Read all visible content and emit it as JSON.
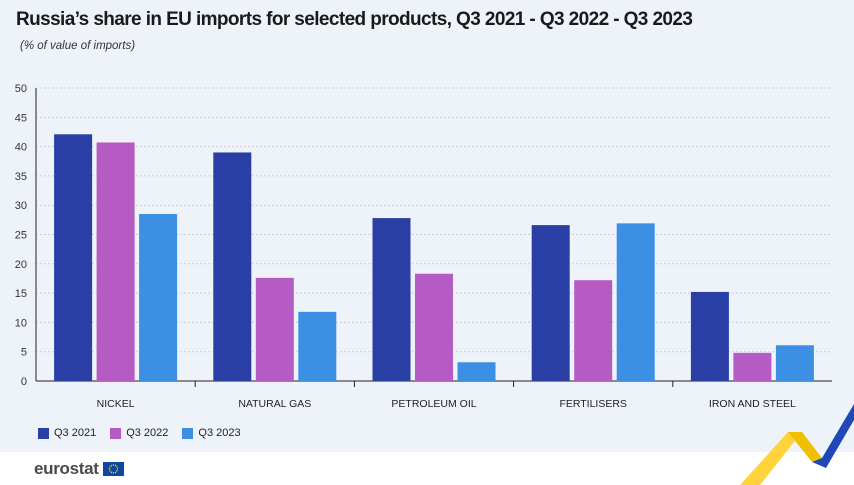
{
  "header": {
    "title": "Russia’s share in EU imports for selected products, Q3 2021 - Q3 2022 - Q3 2023",
    "subtitle": "(% of value of imports)"
  },
  "colors": {
    "Q3 2021": "#2a3fa6",
    "Q3 2022": "#b65bc4",
    "Q3 2023": "#3d8fe3",
    "background": "#eef2f9",
    "gridline": "#c9ced8"
  },
  "chart_data": {
    "type": "bar",
    "title": "Russia’s share in EU imports for selected products, Q3 2021 - Q3 2022 - Q3 2023",
    "subtitle": "(% of value of imports)",
    "categories": [
      "NICKEL",
      "NATURAL GAS",
      "PETROLEUM OIL",
      "FERTILISERS",
      "IRON AND STEEL"
    ],
    "series": [
      {
        "name": "Q3 2021",
        "values": [
          42.1,
          39.0,
          27.8,
          26.6,
          15.2
        ]
      },
      {
        "name": "Q3 2022",
        "values": [
          40.7,
          17.6,
          18.3,
          17.2,
          4.8
        ]
      },
      {
        "name": "Q3 2023",
        "values": [
          28.5,
          11.8,
          3.2,
          26.9,
          6.1
        ]
      }
    ],
    "xlabel": "",
    "ylabel": "",
    "ylim": [
      0,
      50
    ],
    "yticks": [
      0,
      5,
      10,
      15,
      20,
      25,
      30,
      35,
      40,
      45,
      50
    ],
    "grid": true,
    "legend_position": "bottom-left"
  },
  "footer": {
    "logo_text": "eurostat",
    "logo_icon": "eu-flag-icon",
    "decoration": "chevron-ribbon-icon"
  }
}
